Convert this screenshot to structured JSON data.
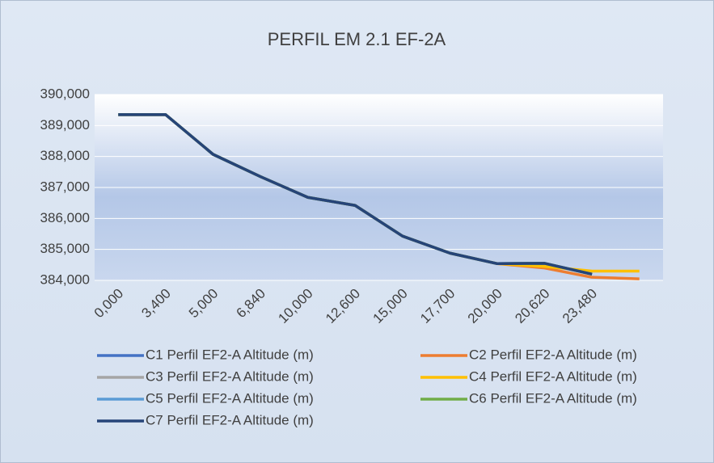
{
  "chart_data": {
    "type": "line",
    "title": "PERFIL EM 2.1 EF-2A",
    "categories": [
      "0,000",
      "3,400",
      "5,000",
      "6,840",
      "10,000",
      "12,600",
      "15,000",
      "17,700",
      "20,000",
      "20,620",
      "23,480",
      null
    ],
    "series": [
      {
        "name": "C1 Perfil EF2-A Altitude (m)",
        "color": "#4472c4",
        "values": [
          389.35,
          389.35,
          388.07,
          387.35,
          386.68,
          386.42,
          385.43,
          384.88,
          384.54,
          384.55,
          384.2,
          null
        ]
      },
      {
        "name": "C2 Perfil EF2-A Altitude (m)",
        "color": "#ed7d31",
        "values": [
          389.35,
          389.35,
          388.07,
          387.35,
          386.68,
          386.42,
          385.43,
          384.88,
          384.54,
          384.4,
          384.1,
          384.05
        ]
      },
      {
        "name": "C3 Perfil EF2-A Altitude (m)",
        "color": "#a5a5a5",
        "values": [
          389.35,
          389.35,
          388.07,
          387.35,
          386.68,
          386.42,
          385.43,
          384.88,
          384.54,
          384.55,
          384.2,
          null
        ]
      },
      {
        "name": "C4 Perfil EF2-A Altitude (m)",
        "color": "#ffc000",
        "values": [
          389.35,
          389.35,
          388.07,
          387.35,
          386.68,
          386.42,
          385.43,
          384.88,
          384.54,
          384.45,
          384.3,
          384.3
        ]
      },
      {
        "name": "C5 Perfil EF2-A Altitude (m)",
        "color": "#5b9bd5",
        "values": [
          389.35,
          389.35,
          388.07,
          387.35,
          386.68,
          386.42,
          385.43,
          384.88,
          384.54,
          384.55,
          384.2,
          null
        ]
      },
      {
        "name": "C6 Perfil EF2-A Altitude (m)",
        "color": "#70ad47",
        "values": [
          389.35,
          389.35,
          388.07,
          387.35,
          386.68,
          386.42,
          385.43,
          384.88,
          384.54,
          384.55,
          384.2,
          null
        ]
      },
      {
        "name": "C7 Perfil EF2-A Altitude (m)",
        "color": "#264478",
        "values": [
          389.35,
          389.35,
          388.07,
          387.35,
          386.68,
          386.42,
          385.43,
          384.88,
          384.54,
          384.55,
          384.2,
          null
        ]
      }
    ],
    "ylim": [
      384,
      390
    ],
    "yticks": [
      {
        "value": 384,
        "label": "384,000"
      },
      {
        "value": 385,
        "label": "385,000"
      },
      {
        "value": 386,
        "label": "386,000"
      },
      {
        "value": 387,
        "label": "387,000"
      },
      {
        "value": 388,
        "label": "388,000"
      },
      {
        "value": 389,
        "label": "389,000"
      },
      {
        "value": 390,
        "label": "390,000"
      }
    ],
    "grid": true,
    "legend": "bottom"
  }
}
